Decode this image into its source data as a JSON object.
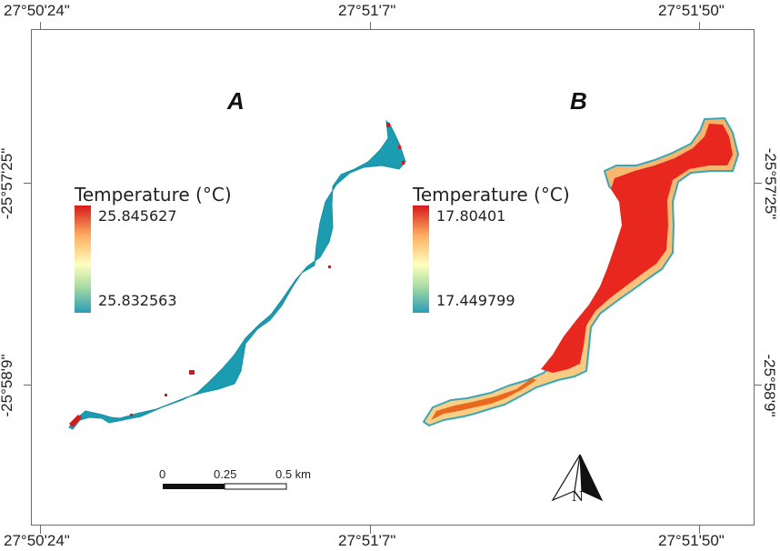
{
  "map": {
    "top_coords": [
      "27°50'24\"",
      "27°51'7\"",
      "27°51'50\""
    ],
    "bottom_coords": [
      "27°50'24\"",
      "27°51'7\"",
      "27°51'50\""
    ],
    "left_coords": [
      "-25°57'25\"",
      "-25°58'9\""
    ],
    "right_coords": [
      "-25°57'25\"",
      "-25°58'9\""
    ]
  },
  "panels": [
    {
      "label": "A",
      "legend_title": "Temperature (°C)",
      "legend_max": "25.845627",
      "legend_min": "25.832563",
      "fill_color": "#1b9cb0",
      "edge_color": "#d7191c"
    },
    {
      "label": "B",
      "legend_title": "Temperature (°C)",
      "legend_max": "17.80401",
      "legend_min": "17.449799",
      "fill_color": "#e8281e",
      "edge_color": "#f7c27c"
    }
  ],
  "scale_bar": {
    "labels": [
      "0",
      "0.25",
      "0.5 km"
    ]
  },
  "north_arrow": {
    "label": "N"
  },
  "colors": {
    "low": "#2b9bb5",
    "mid": "#ffffbf",
    "high": "#d7191c"
  }
}
